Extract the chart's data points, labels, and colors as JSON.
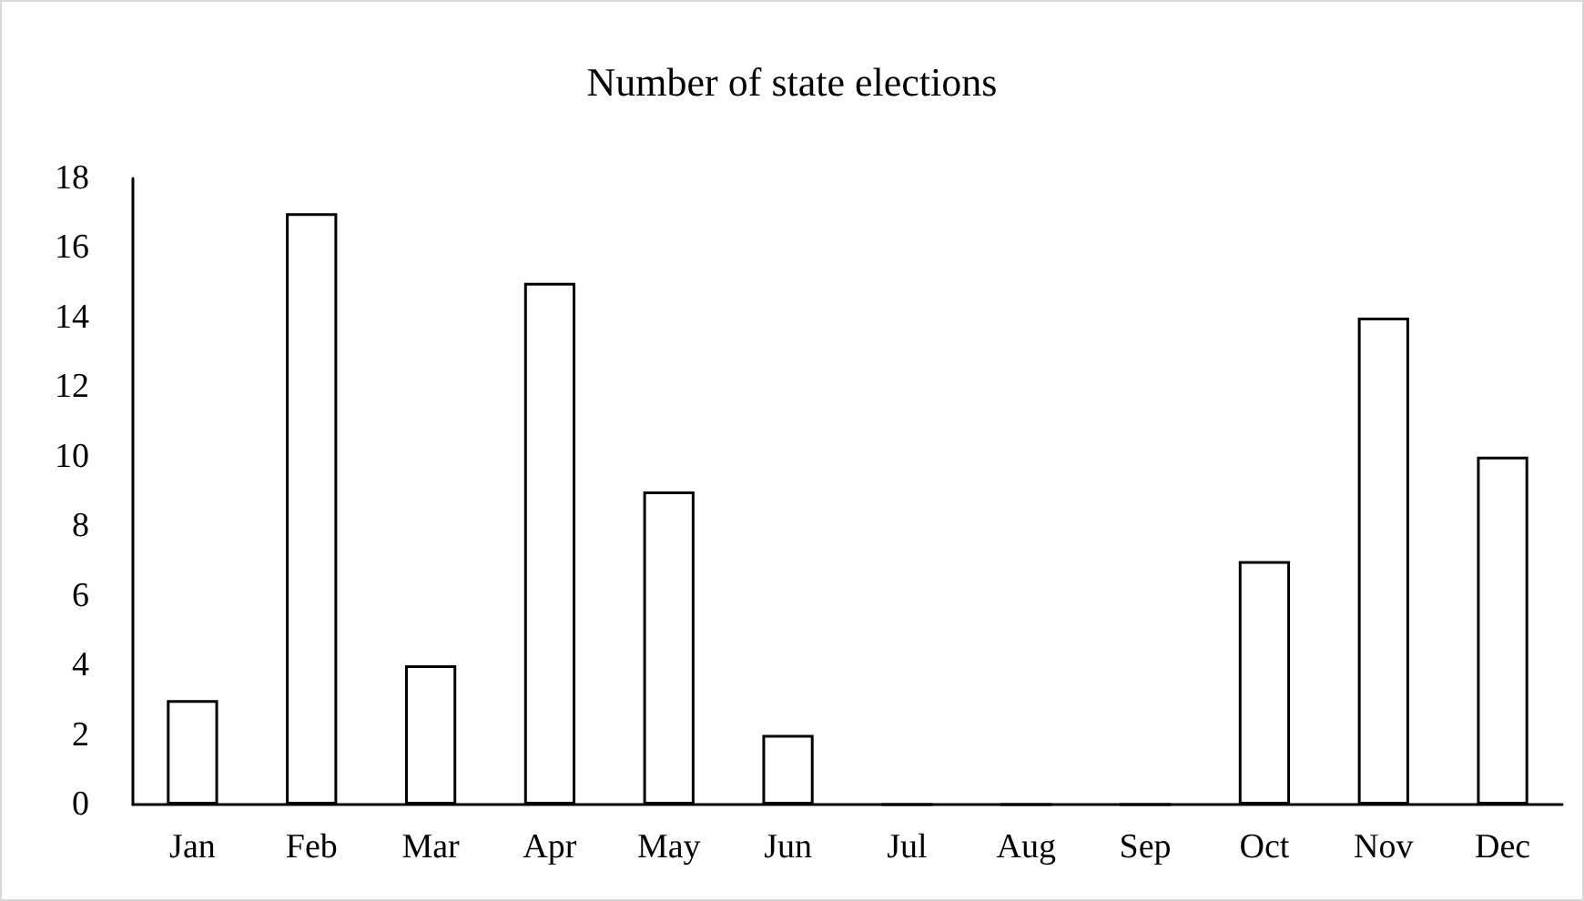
{
  "chart_data": {
    "type": "bar",
    "title": "Number of state elections",
    "categories": [
      "Jan",
      "Feb",
      "Mar",
      "Apr",
      "May",
      "Jun",
      "Jul",
      "Aug",
      "Sep",
      "Oct",
      "Nov",
      "Dec"
    ],
    "values": [
      3,
      17,
      4,
      15,
      9,
      2,
      0,
      0,
      0,
      7,
      14,
      10
    ],
    "color": "#ffffff",
    "ylim": [
      0,
      18
    ],
    "yticks": [
      0,
      2,
      4,
      6,
      8,
      10,
      12,
      14,
      16,
      18
    ],
    "grid": false
  }
}
